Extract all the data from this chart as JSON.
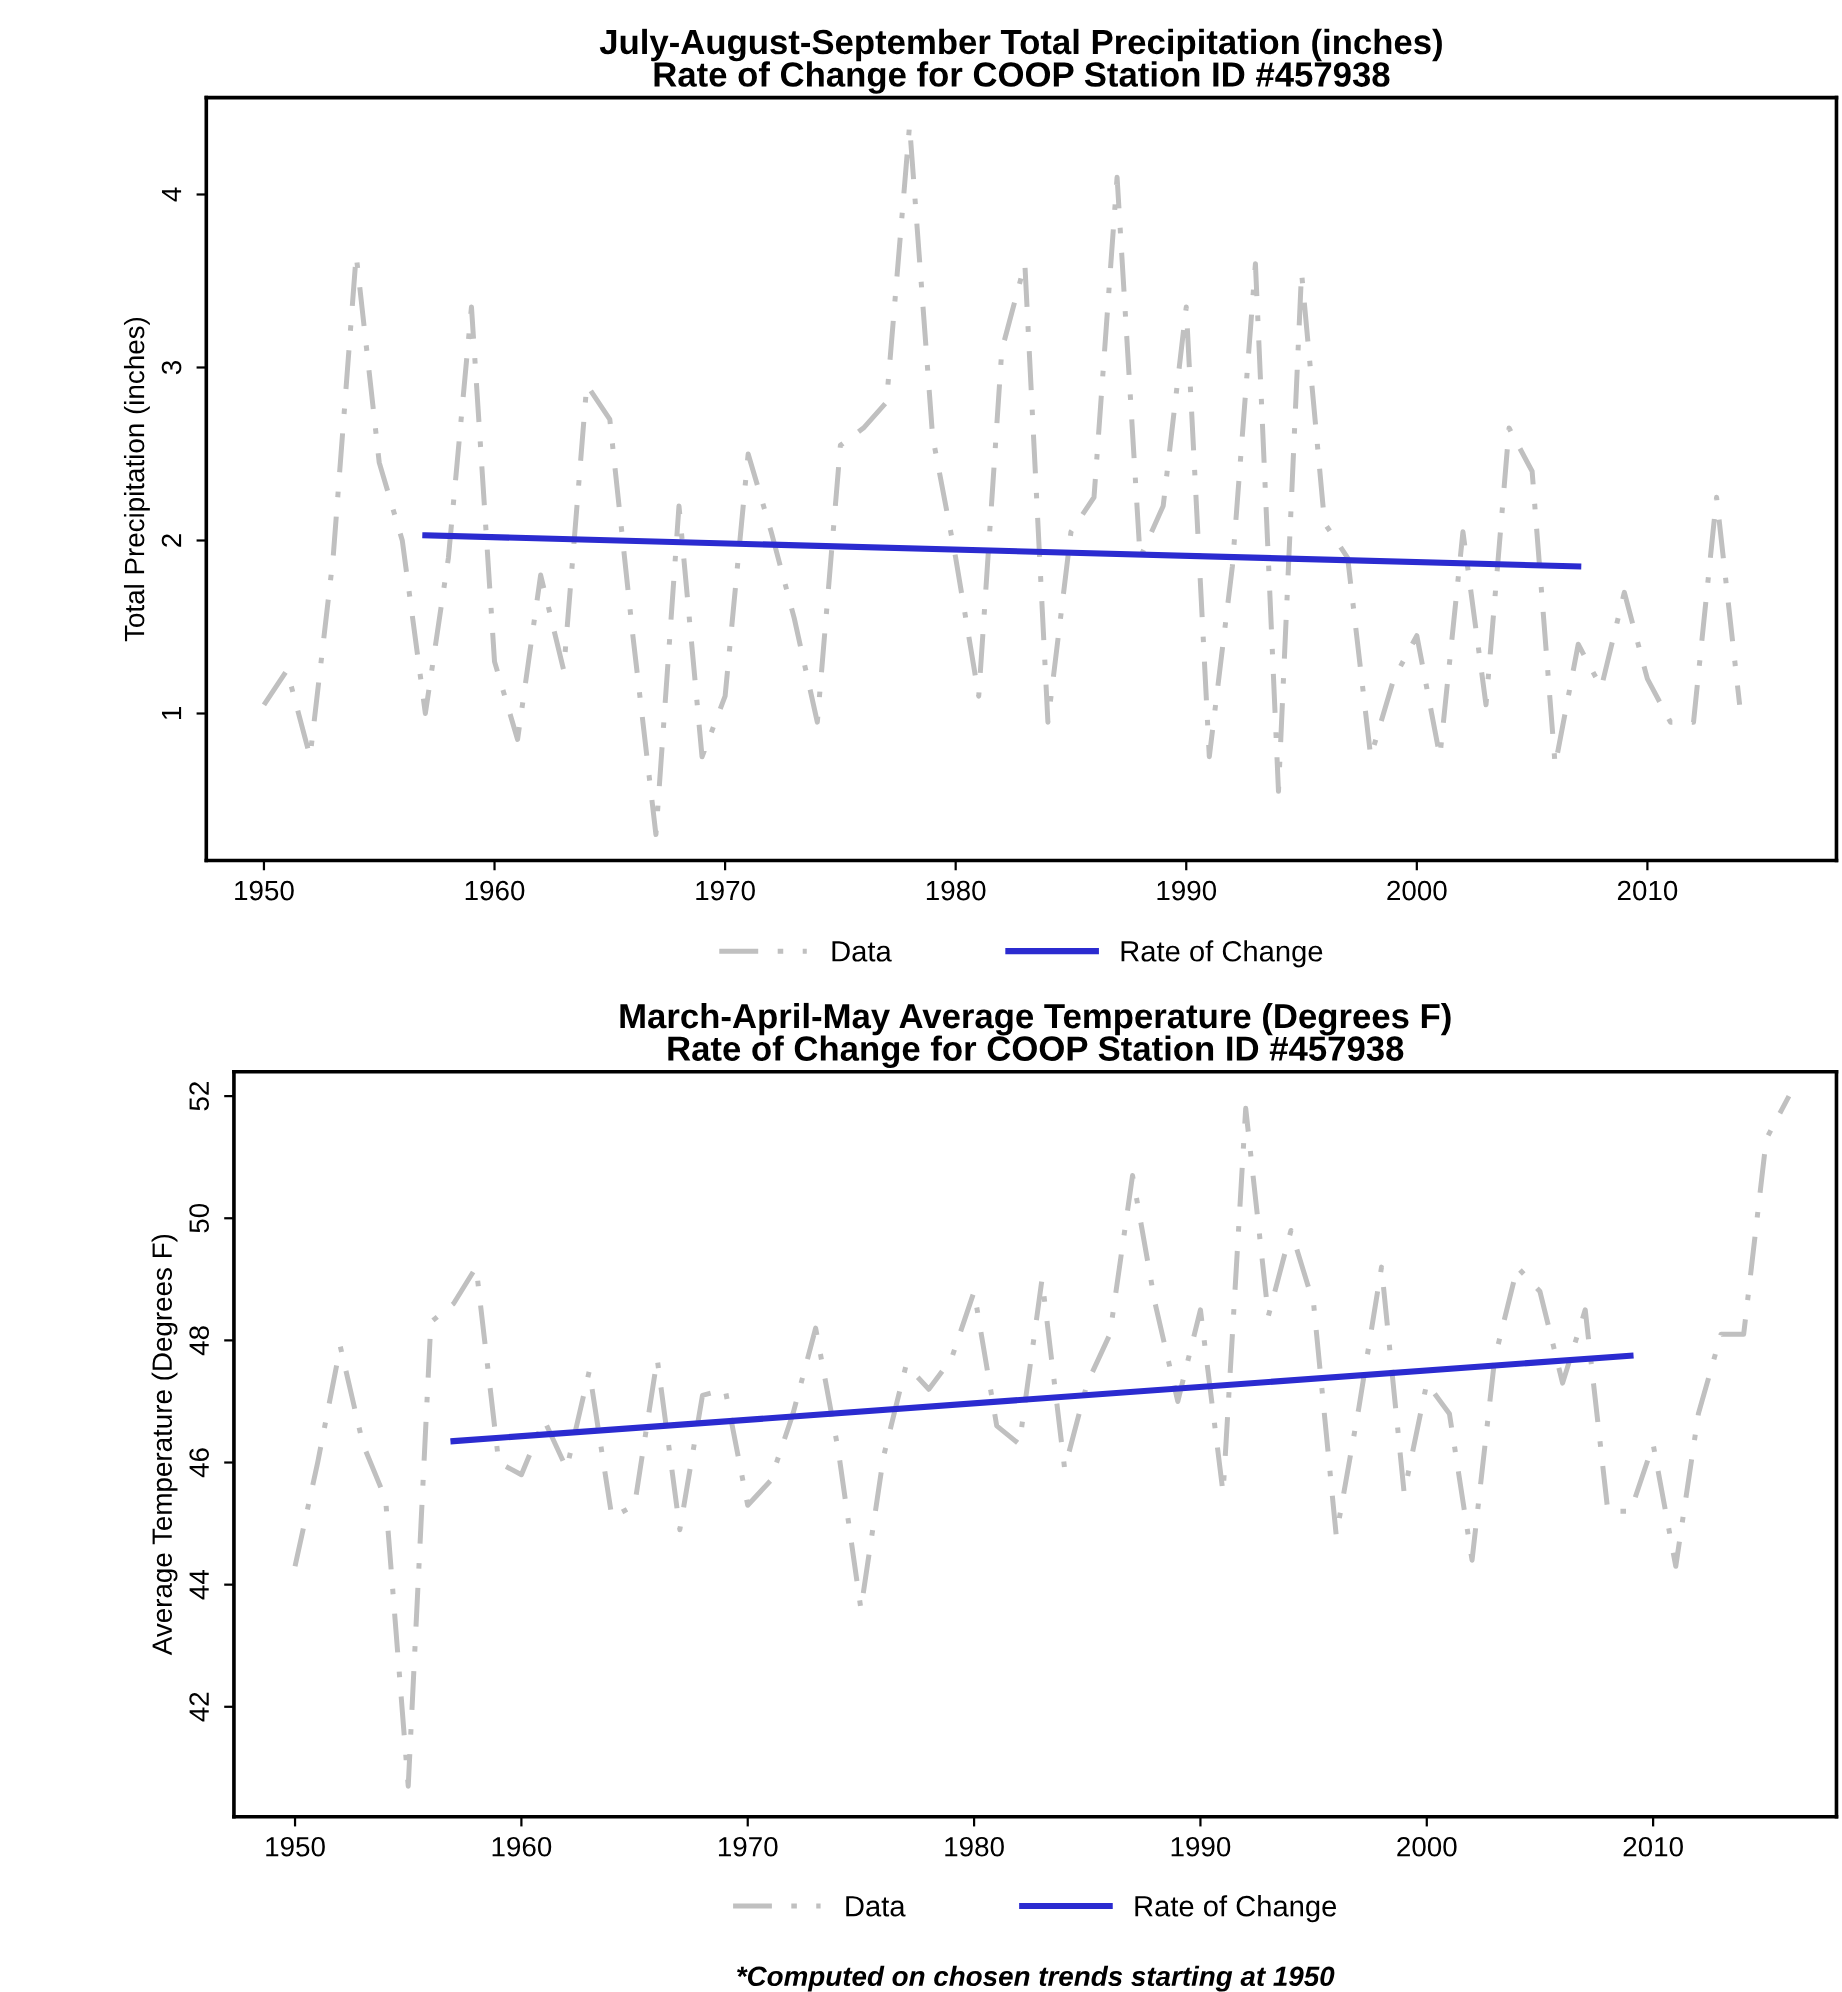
{
  "chart_data": [
    {
      "type": "line",
      "title": "July-August-September Total Precipitation (inches)\nRate of Change for COOP Station ID #457938",
      "ylabel": "Total Precipitation (inches)",
      "xlim": [
        1947.5,
        2018.2
      ],
      "xticks": [
        1950,
        1960,
        1970,
        1980,
        1990,
        2000,
        2010
      ],
      "ylim": [
        0.15,
        4.56
      ],
      "yticks": [
        1,
        2,
        3,
        4
      ],
      "grid": false,
      "legend": "bottom",
      "series": [
        {
          "name": "Data",
          "color": "#c0c0c0",
          "line_style": "dashed",
          "x": [
            1950,
            1951,
            1952,
            1953,
            1954,
            1955,
            1956,
            1957,
            1958,
            1959,
            1960,
            1961,
            1962,
            1963,
            1964,
            1965,
            1966,
            1967,
            1968,
            1969,
            1970,
            1971,
            1972,
            1973,
            1974,
            1975,
            1976,
            1977,
            1978,
            1979,
            1980,
            1981,
            1982,
            1983,
            1984,
            1985,
            1986,
            1987,
            1988,
            1989,
            1990,
            1991,
            1992,
            1993,
            1994,
            1995,
            1996,
            1997,
            1998,
            1999,
            2000,
            2001,
            2002,
            2003,
            2004,
            2005,
            2006,
            2007,
            2008,
            2009,
            2010,
            2011,
            2012,
            2013,
            2014
          ],
          "values": [
            1.05,
            1.25,
            0.75,
            1.9,
            3.65,
            2.45,
            2.0,
            1.0,
            1.9,
            3.35,
            1.3,
            0.85,
            1.8,
            1.25,
            2.9,
            2.7,
            1.45,
            0.3,
            2.2,
            0.75,
            1.1,
            2.5,
            2.05,
            1.55,
            0.95,
            2.55,
            2.65,
            2.8,
            4.4,
            2.6,
            1.9,
            1.1,
            3.1,
            3.6,
            0.95,
            2.05,
            2.25,
            4.1,
            1.9,
            2.2,
            3.35,
            0.75,
            1.85,
            3.6,
            0.55,
            3.55,
            2.1,
            1.9,
            0.75,
            1.2,
            1.45,
            0.75,
            2.05,
            1.05,
            2.65,
            2.4,
            0.7,
            1.4,
            1.15,
            1.7,
            1.2,
            0.95,
            0.95,
            2.25,
            1.05
          ]
        },
        {
          "name": "Rate of Change",
          "color": "#2b2bd0",
          "line_style": "solid",
          "x": [
            1957,
            2007
          ],
          "values": [
            2.03,
            1.85
          ]
        }
      ]
    },
    {
      "type": "line",
      "title": "March-April-May Average Temperature (Degrees F)\nRate of Change for COOP Station ID #457938",
      "ylabel": "Average Temperature (Degrees F)",
      "xlim": [
        1947.3,
        2018.1
      ],
      "xticks": [
        1950,
        1960,
        1970,
        1980,
        1990,
        2000,
        2010
      ],
      "ylim": [
        40.2,
        52.4
      ],
      "yticks": [
        42,
        44,
        46,
        48,
        50,
        52
      ],
      "grid": false,
      "legend": "bottom",
      "annotations": [
        "*Computed on chosen trends starting at 1950"
      ],
      "series": [
        {
          "name": "Data",
          "color": "#c0c0c0",
          "line_style": "dashed",
          "x": [
            1950,
            1951,
            1952,
            1953,
            1954,
            1955,
            1956,
            1957,
            1958,
            1959,
            1960,
            1961,
            1962,
            1963,
            1964,
            1965,
            1966,
            1967,
            1968,
            1969,
            1970,
            1971,
            1972,
            1973,
            1974,
            1975,
            1976,
            1977,
            1978,
            1979,
            1980,
            1981,
            1982,
            1983,
            1984,
            1985,
            1986,
            1987,
            1988,
            1989,
            1990,
            1991,
            1992,
            1993,
            1994,
            1995,
            1996,
            1997,
            1998,
            1999,
            2000,
            2001,
            2002,
            2003,
            2004,
            2005,
            2006,
            2007,
            2008,
            2009,
            2010,
            2011,
            2012,
            2013,
            2014,
            2015,
            2016
          ],
          "values": [
            44.3,
            46.0,
            47.9,
            46.3,
            45.4,
            40.7,
            48.3,
            48.6,
            49.2,
            46.0,
            45.8,
            46.7,
            45.9,
            47.5,
            45.1,
            45.3,
            47.7,
            44.9,
            47.1,
            47.2,
            45.3,
            45.7,
            46.8,
            48.2,
            46.2,
            43.6,
            46.1,
            47.6,
            47.2,
            47.7,
            48.8,
            46.6,
            46.3,
            49.0,
            45.9,
            47.3,
            48.1,
            50.7,
            48.6,
            47.0,
            48.5,
            45.5,
            51.8,
            48.4,
            49.8,
            48.6,
            44.8,
            46.9,
            49.2,
            45.5,
            47.3,
            46.8,
            44.4,
            47.7,
            49.2,
            48.8,
            47.3,
            48.5,
            45.2,
            45.2,
            46.3,
            44.3,
            46.8,
            48.1,
            48.1,
            51.3,
            52.0
          ]
        },
        {
          "name": "Rate of Change",
          "color": "#2b2bd0",
          "line_style": "solid",
          "x": [
            1957,
            2009
          ],
          "values": [
            46.35,
            47.75
          ]
        }
      ]
    }
  ]
}
